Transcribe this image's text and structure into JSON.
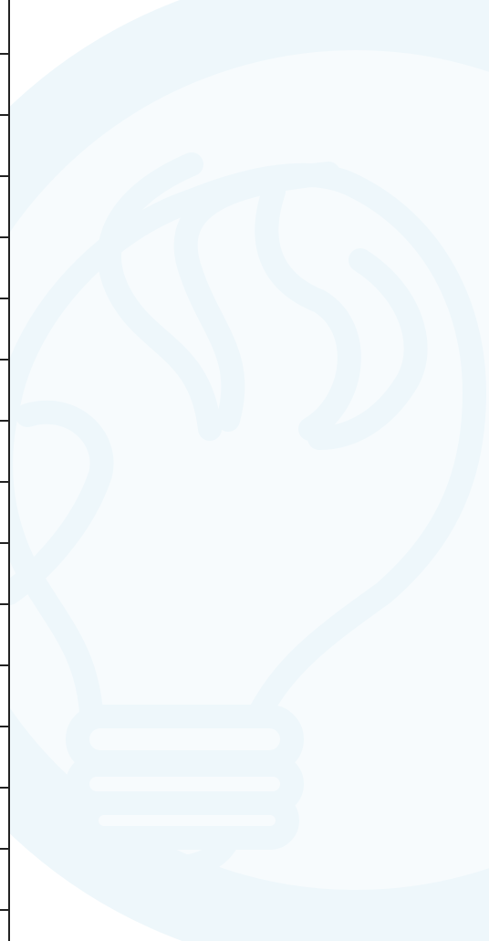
{
  "icons": {
    "watermark": "lightbulb-icon"
  },
  "colors": {
    "background": "#ffffff",
    "watermark_light": "#f7fbfd",
    "watermark_stroke": "#eef7fb",
    "rail_line": "#222222"
  },
  "rail": {
    "tick_count": 15
  }
}
